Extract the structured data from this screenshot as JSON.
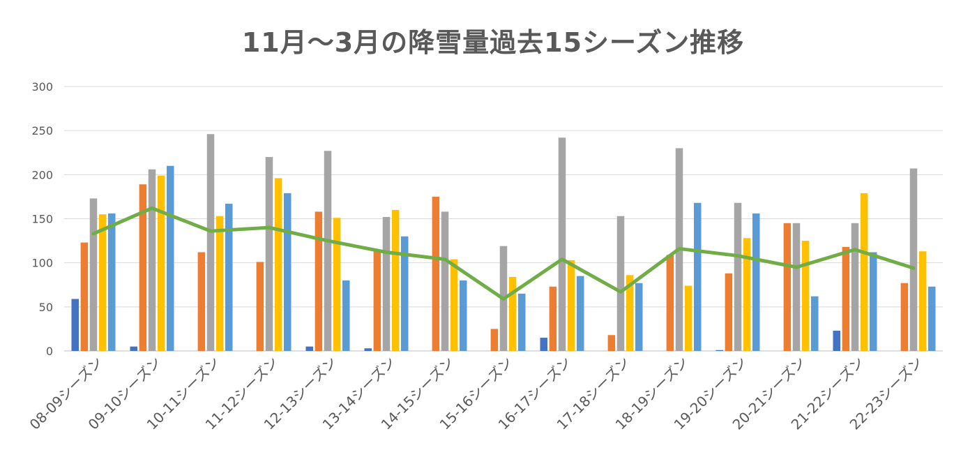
{
  "chart_data": {
    "type": "bar",
    "title": "11月〜3月の降雪量過去15シーズン推移",
    "xlabel": "",
    "ylabel": "",
    "ylim": [
      0,
      300
    ],
    "yticks": [
      0,
      50,
      100,
      150,
      200,
      250,
      300
    ],
    "grid": true,
    "legend": "none",
    "categories": [
      "08-09シーズン",
      "09-10シーズン",
      "10-11シーズン",
      "11-12シーズン",
      "12-13シーズン",
      "13-14シーズン",
      "14-15シーズン",
      "15-16シーズン",
      "16-17シーズン",
      "17-18シーズン",
      "18-19シーズン",
      "19-20シーズン",
      "20-21シーズン",
      "21-22シーズン",
      "22-23シーズン"
    ],
    "series": [
      {
        "color": "#4472C4",
        "values": [
          59,
          5,
          0,
          0,
          5,
          3,
          0,
          0,
          15,
          0,
          0,
          1,
          0,
          23,
          0
        ]
      },
      {
        "color": "#ED7D31",
        "values": [
          123,
          189,
          112,
          101,
          158,
          113,
          175,
          25,
          73,
          18,
          109,
          88,
          145,
          118,
          77
        ]
      },
      {
        "color": "#A5A5A5",
        "values": [
          173,
          206,
          246,
          220,
          227,
          152,
          158,
          119,
          242,
          153,
          230,
          168,
          145,
          145,
          207
        ]
      },
      {
        "color": "#FFC000",
        "values": [
          155,
          199,
          153,
          196,
          151,
          160,
          104,
          84,
          103,
          86,
          74,
          128,
          125,
          179,
          113
        ]
      },
      {
        "color": "#5B9BD5",
        "values": [
          156,
          210,
          167,
          179,
          80,
          130,
          80,
          65,
          85,
          77,
          168,
          156,
          62,
          112,
          73
        ]
      }
    ],
    "line": {
      "color": "#70AD47",
      "values": [
        133,
        162,
        136,
        140,
        125,
        112,
        104,
        59,
        104,
        67,
        116,
        108,
        95,
        115,
        94
      ]
    }
  }
}
